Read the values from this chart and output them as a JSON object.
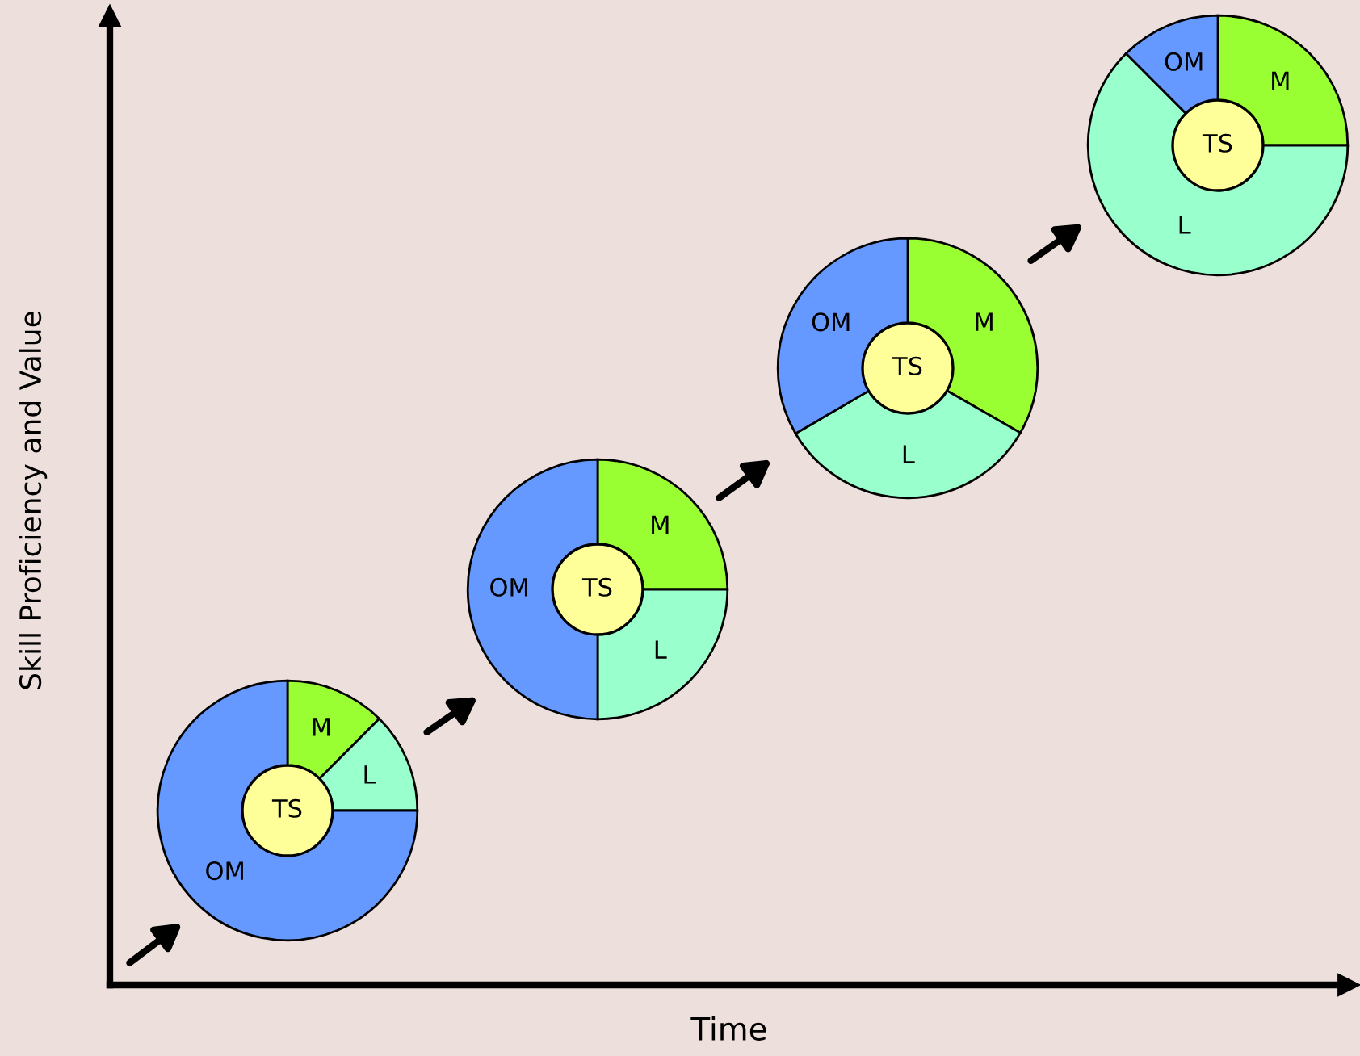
{
  "chart_data": [
    {
      "type": "other",
      "xlabel": "Time",
      "ylabel": "Skill Proficiency and Value"
    },
    {
      "type": "donut",
      "categories": [
        "M",
        "L",
        "OM"
      ],
      "values": [
        12.5,
        12.5,
        75
      ],
      "colors": [
        "#99ff33",
        "#99ffcc",
        "#6699ff"
      ],
      "annotations": [
        "TS"
      ]
    },
    {
      "type": "donut",
      "categories": [
        "M",
        "L",
        "OM"
      ],
      "values": [
        25,
        25,
        50
      ],
      "colors": [
        "#99ff33",
        "#99ffcc",
        "#6699ff"
      ],
      "annotations": [
        "TS"
      ]
    },
    {
      "type": "donut",
      "categories": [
        "M",
        "L",
        "OM"
      ],
      "values": [
        33.3,
        33.3,
        33.4
      ],
      "colors": [
        "#99ff33",
        "#99ffcc",
        "#6699ff"
      ],
      "annotations": [
        "TS"
      ]
    },
    {
      "type": "donut",
      "categories": [
        "M",
        "L",
        "OM"
      ],
      "values": [
        25,
        62.5,
        12.5
      ],
      "colors": [
        "#99ff33",
        "#99ffcc",
        "#6699ff"
      ],
      "annotations": [
        "TS"
      ]
    }
  ]
}
